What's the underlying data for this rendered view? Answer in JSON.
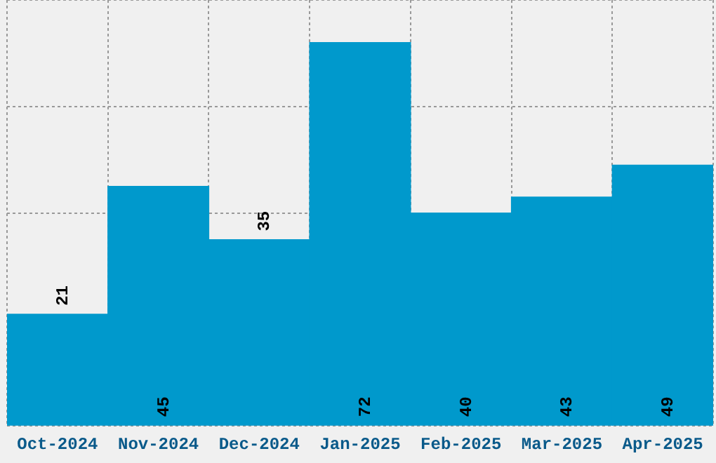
{
  "chart_data": {
    "type": "bar",
    "categories": [
      "Oct-2024",
      "Nov-2024",
      "Dec-2024",
      "Jan-2025",
      "Feb-2025",
      "Mar-2025",
      "Apr-2025"
    ],
    "values": [
      21,
      45,
      35,
      72,
      40,
      43,
      49
    ],
    "color": "#0099cc",
    "ylim": [
      0,
      80
    ],
    "tick_labels": "x",
    "grid": true,
    "data_labels": true
  }
}
